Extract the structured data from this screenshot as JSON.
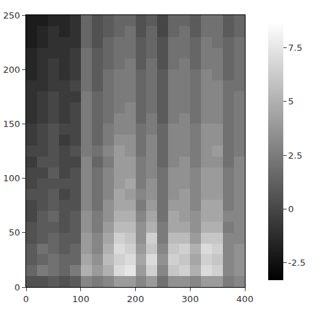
{
  "chart_data": {
    "type": "heatmap",
    "x": [
      10,
      30,
      50,
      70,
      90,
      110,
      130,
      150,
      170,
      190,
      210,
      230,
      250,
      270,
      290,
      310,
      330,
      350,
      370,
      390
    ],
    "y": [
      5,
      15,
      25,
      35,
      45,
      55,
      65,
      75,
      85,
      95,
      105,
      115,
      125,
      135,
      145,
      155,
      165,
      175,
      185,
      195,
      205,
      215,
      225,
      235,
      245
    ],
    "z": [
      [
        0.5,
        0.5,
        1,
        0.5,
        1,
        3,
        2.5,
        3,
        4,
        4,
        3,
        4,
        2,
        3.5,
        3.5,
        3,
        4,
        4,
        2.5,
        3
      ],
      [
        1.5,
        2.5,
        2,
        1.5,
        2.5,
        5,
        4,
        5,
        7,
        7.5,
        4,
        6.5,
        3,
        6,
        6.5,
        5,
        7,
        6.5,
        3,
        3.5
      ],
      [
        1,
        1.5,
        2,
        1.5,
        1.5,
        4.5,
        3.5,
        5.5,
        6.5,
        7,
        4.5,
        7,
        3.5,
        6.5,
        6,
        4.5,
        6.5,
        6,
        3,
        3.5
      ],
      [
        1,
        2,
        1.5,
        1,
        1.5,
        4,
        3,
        5,
        7,
        6.5,
        4,
        6,
        3,
        6,
        6.5,
        5,
        7,
        6.5,
        3,
        3.5
      ],
      [
        0.5,
        1,
        1.5,
        1,
        1,
        4,
        3,
        4.5,
        6.5,
        6,
        3.5,
        6.5,
        2.5,
        5.5,
        5.5,
        4,
        6,
        6,
        3,
        3
      ],
      [
        0.5,
        1,
        1,
        0.5,
        1,
        3.5,
        2.5,
        4,
        5.5,
        5.5,
        3.5,
        5,
        2.5,
        4.5,
        4.5,
        3.5,
        5,
        5,
        2.5,
        3
      ],
      [
        0,
        1,
        1.5,
        0.5,
        1,
        3.5,
        2.5,
        3.5,
        5,
        5,
        3,
        4.5,
        2,
        4.5,
        4,
        3.5,
        4.5,
        4.5,
        3,
        3
      ],
      [
        0,
        0.5,
        1,
        0.5,
        0.5,
        3,
        2,
        3.5,
        4.5,
        4.5,
        2.5,
        4,
        2,
        4,
        4,
        3,
        4.5,
        4.5,
        2.5,
        3
      ],
      [
        0.5,
        0.5,
        1,
        0,
        0.5,
        3,
        2,
        3,
        4.5,
        4,
        3,
        3.5,
        2,
        3.5,
        4,
        3,
        4,
        4,
        2.5,
        3
      ],
      [
        0,
        0.5,
        0.5,
        0.5,
        0.5,
        3,
        2,
        3,
        4,
        4.5,
        2.5,
        3.5,
        2,
        3.5,
        3.5,
        3,
        4,
        4,
        2.5,
        3
      ],
      [
        0,
        0,
        1,
        0,
        0.5,
        3,
        2,
        3,
        4,
        4,
        2.5,
        3,
        2,
        3.5,
        3.5,
        3,
        4,
        4,
        2.5,
        3
      ],
      [
        -0.5,
        0.5,
        0.5,
        0,
        0,
        3,
        1.5,
        2.5,
        4,
        4,
        2.5,
        3,
        1.5,
        3,
        3.5,
        2.5,
        3.5,
        3.5,
        2,
        3
      ],
      [
        0,
        0,
        0.5,
        0,
        0.5,
        2.5,
        2,
        3,
        4,
        3.5,
        2,
        3,
        1.5,
        3,
        3,
        2.5,
        3.5,
        4,
        2,
        2.5
      ],
      [
        -0.5,
        0,
        0.5,
        -0.5,
        0,
        2.5,
        1.5,
        2.5,
        3.5,
        3.5,
        2,
        3,
        1.5,
        3,
        3,
        2.5,
        3.5,
        3.5,
        2,
        2.5
      ],
      [
        -0.5,
        0,
        0.5,
        0,
        0,
        2.5,
        1.5,
        2.5,
        3,
        3,
        2,
        2.5,
        1.5,
        3,
        3,
        2.5,
        3.5,
        3.5,
        2,
        2.5
      ],
      [
        -1,
        -0.5,
        0,
        -0.5,
        0,
        2.5,
        1.5,
        2,
        3,
        3,
        1.5,
        2.5,
        1,
        2.5,
        3,
        2,
        3,
        3,
        2,
        2.5
      ],
      [
        -1,
        -0.5,
        0,
        -0.5,
        0,
        2.5,
        1.5,
        2,
        2.5,
        3,
        1.5,
        2,
        1,
        2.5,
        2.5,
        2,
        3,
        3,
        2,
        2.5
      ],
      [
        -1,
        -0.5,
        0,
        -0.5,
        -0.5,
        2.5,
        1.5,
        2,
        2.5,
        2.5,
        1.5,
        2,
        1,
        2.5,
        2.5,
        2,
        3,
        3,
        2,
        2.5
      ],
      [
        -1,
        -1,
        -0.5,
        -0.5,
        0,
        2,
        1,
        2,
        2.5,
        2.5,
        1.5,
        2,
        1,
        2.5,
        2.5,
        2,
        3,
        3,
        2,
        2
      ],
      [
        -1.5,
        -1,
        -0.5,
        -1,
        -0.5,
        2,
        1,
        2,
        2.5,
        2.5,
        1.5,
        2,
        1,
        2.5,
        2.5,
        2,
        3,
        2.5,
        1.5,
        2
      ],
      [
        -1.5,
        -1,
        -0.5,
        -1,
        -0.5,
        2,
        1,
        1.5,
        2,
        2.5,
        1,
        2,
        0.5,
        2,
        2.5,
        1.5,
        2.5,
        2.5,
        1.5,
        2
      ],
      [
        -1.5,
        -1,
        -1,
        -1,
        -0.5,
        2,
        1,
        1.5,
        2,
        2,
        1,
        1.5,
        0.5,
        2,
        2,
        1.5,
        2.5,
        2.5,
        1.5,
        2
      ],
      [
        -2,
        -1.5,
        -1,
        -1,
        -1,
        1.5,
        0.5,
        1.5,
        2,
        2,
        1,
        1.5,
        0.5,
        2,
        2,
        1.5,
        2.5,
        2,
        1.5,
        2
      ],
      [
        -2,
        -1.5,
        -1,
        -1.5,
        -1,
        1.5,
        0.5,
        1,
        1.5,
        2,
        0.5,
        1.5,
        0,
        1.5,
        2,
        1,
        2,
        2,
        1,
        1.5
      ],
      [
        -2,
        -2,
        -1.5,
        -1.5,
        -1,
        1.5,
        0.5,
        1,
        1.5,
        1.5,
        0.5,
        1,
        0,
        1.5,
        1.5,
        1,
        2,
        2,
        1,
        1.5
      ]
    ],
    "xlim": [
      0,
      400
    ],
    "xticks": [
      0,
      100,
      200,
      300,
      400
    ],
    "ylim": [
      0,
      250
    ],
    "yticks": [
      0,
      50,
      100,
      150,
      200,
      250
    ],
    "zlim": [
      -3.3,
      8.7
    ],
    "zticks": [
      -2.5,
      0,
      2.5,
      5,
      7.5
    ],
    "colors": [
      "#000000",
      "#ffffff"
    ],
    "grid": false
  }
}
